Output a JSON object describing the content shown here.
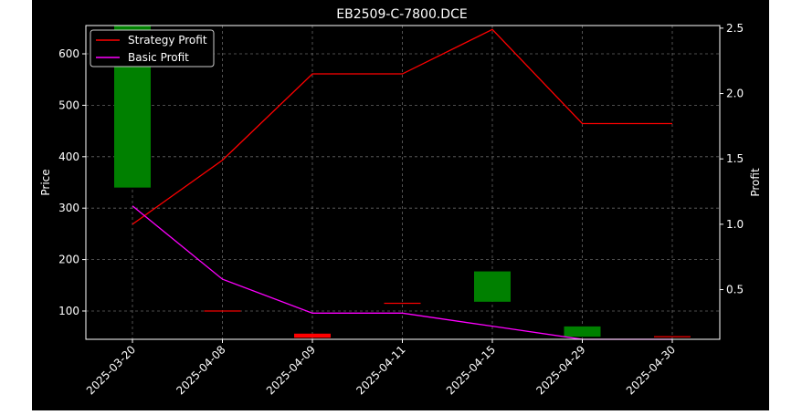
{
  "chart_data": {
    "type": "line",
    "title": "EB2509-C-7800.DCE",
    "ylabel_left": "Price",
    "ylabel_right": "Profit",
    "x": [
      "2025-03-20",
      "2025-04-08",
      "2025-04-09",
      "2025-04-11",
      "2025-04-15",
      "2025-04-29",
      "2025-04-30"
    ],
    "ylim_left": [
      45,
      655
    ],
    "yticks_left": [
      100,
      200,
      300,
      400,
      500,
      600
    ],
    "ylim_right": [
      0.12,
      2.52
    ],
    "yticks_right": [
      0.5,
      1.0,
      1.5,
      2.0,
      2.5
    ],
    "yticks_right_labels": [
      "0.5",
      "1.0",
      "1.5",
      "2.0",
      "2.5"
    ],
    "candles": [
      {
        "open": 340,
        "close": 655,
        "color": "#008000"
      },
      {
        "open": 100,
        "close": 100,
        "color": "#ff0000"
      },
      {
        "open": 56,
        "close": 48,
        "color": "#ff0000"
      },
      {
        "open": 115,
        "close": 115,
        "color": "#ff0000"
      },
      {
        "open": 118,
        "close": 177,
        "color": "#008000"
      },
      {
        "open": 50,
        "close": 70,
        "color": "#008000"
      },
      {
        "open": 50,
        "close": 50,
        "color": "#ff0000"
      }
    ],
    "series": [
      {
        "name": "Strategy Profit",
        "color": "#ff0000",
        "values": [
          1.0,
          1.49,
          2.15,
          2.15,
          2.49,
          1.77,
          1.77
        ]
      },
      {
        "name": "Basic Profit",
        "color": "#ff00ff",
        "values": [
          1.14,
          0.58,
          0.32,
          0.32,
          0.22,
          0.12,
          0.12
        ]
      }
    ],
    "legend": "top-left",
    "grid": true,
    "colors": {
      "background": "#000000",
      "axes": "#ffffff",
      "grid": "#808080"
    }
  }
}
